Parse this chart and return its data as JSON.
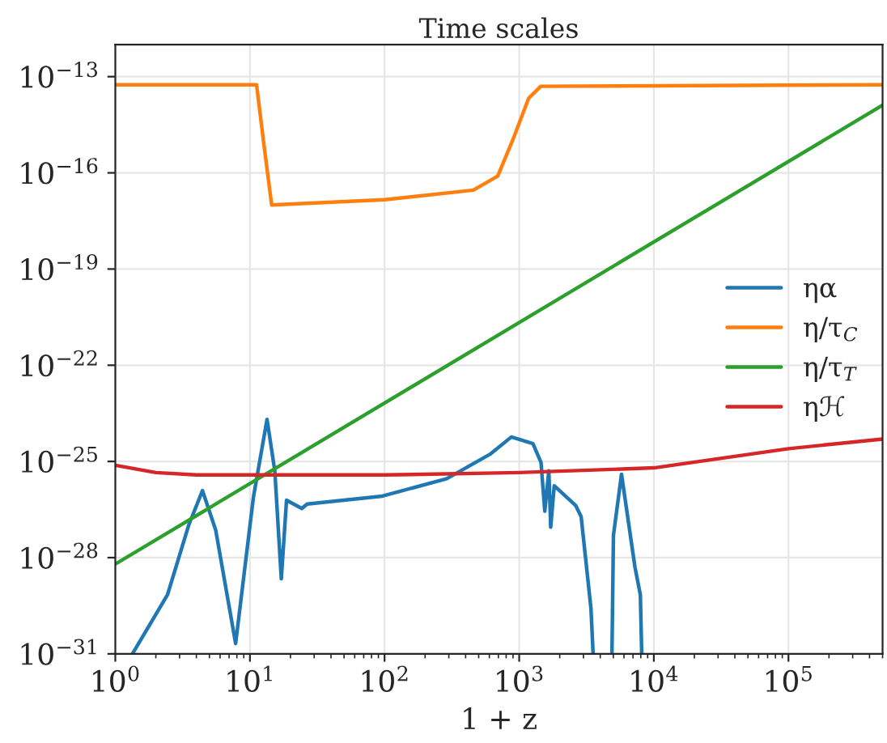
{
  "chart_data": {
    "type": "line",
    "title": "Time scales",
    "xlabel": "1 + z",
    "log": "xy",
    "xlim": [
      1,
      500000
    ],
    "ylim": [
      1e-31,
      1e-12
    ],
    "xticks": [
      {
        "value": 1,
        "label": "10$^{0}$"
      },
      {
        "value": 10,
        "label": "10$^{1}$"
      },
      {
        "value": 100,
        "label": "10$^{2}$"
      },
      {
        "value": 1000,
        "label": "10$^{3}$"
      },
      {
        "value": 10000,
        "label": "10$^{4}$"
      },
      {
        "value": 100000,
        "label": "10$^{5}$"
      }
    ],
    "yticks": [
      {
        "value": 1e-31,
        "label": "10$^{−31}$"
      },
      {
        "value": 1e-28,
        "label": "10$^{−28}$"
      },
      {
        "value": 1e-25,
        "label": "10$^{−25}$"
      },
      {
        "value": 1e-22,
        "label": "10$^{−22}$"
      },
      {
        "value": 1e-19,
        "label": "10$^{−19}$"
      },
      {
        "value": 1e-16,
        "label": "10$^{−16}$"
      },
      {
        "value": 1e-13,
        "label": "10$^{−13}$"
      }
    ],
    "grid": true,
    "legend": "center right",
    "series": [
      {
        "name": "ηα",
        "color": "#1f77b4",
        "x": [
          1.34,
          2.44,
          3.52,
          4.44,
          5.57,
          7.83,
          10.6,
          13.4,
          15.3,
          17.1,
          18.7,
          24.3,
          26.6,
          96.4,
          290,
          605,
          875,
          1265,
          1452,
          1549,
          1660,
          1714,
          1820,
          2630,
          2884,
          3412,
          3540,
          4000,
          4887,
          5012,
          5754,
          7244,
          7943,
          8128
        ],
        "values": [
          1e-31,
          6.9e-30,
          1.07e-27,
          1.23e-26,
          7.2e-28,
          2.1e-31,
          7.4e-27,
          2.04e-24,
          5.1e-26,
          2.19e-29,
          6.2e-27,
          3.4e-27,
          4.7e-27,
          8.3e-27,
          2.9e-26,
          1.66e-25,
          5.8e-25,
          3.6e-25,
          9.3e-26,
          2.8e-27,
          5.1e-26,
          8.9e-28,
          1.74e-26,
          4.2e-27,
          1.9e-27,
          2.6e-30,
          1e-31,
          null,
          1e-31,
          5e-28,
          4e-26,
          5e-29,
          6.9e-30,
          1e-31
        ]
      },
      {
        "name": "η/τ$_{C}$",
        "color": "#ff7f0e",
        "x": [
          1,
          11.2,
          12.6,
          14.5,
          100,
          457,
          692,
          891,
          1175,
          1445,
          500000
        ],
        "values": [
          5.6e-14,
          5.6e-14,
          1e-15,
          1e-17,
          1.45e-17,
          2.9e-17,
          7.9e-17,
          1e-15,
          2.1e-14,
          5e-14,
          5.6e-14
        ]
      },
      {
        "name": "η/τ$_{T}$",
        "color": "#2ca02c",
        "x": [
          1,
          500000
        ],
        "values": [
          6.3e-29,
          1.29e-14
        ]
      },
      {
        "name": "ηℋ",
        "color": "#d62728",
        "x": [
          1,
          2,
          4,
          100,
          1000,
          10000,
          100000,
          500000
        ],
        "values": [
          7.6e-26,
          4.5e-26,
          3.8e-26,
          3.8e-26,
          4.5e-26,
          6.3e-26,
          2.5e-25,
          5e-25
        ]
      }
    ]
  }
}
